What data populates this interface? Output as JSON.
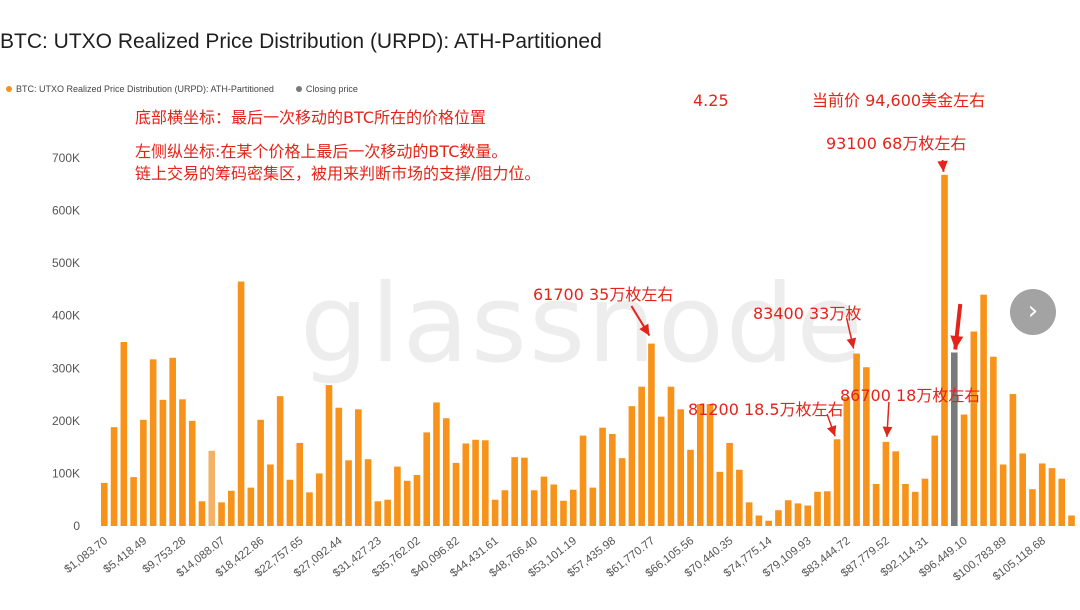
{
  "chart_data": {
    "type": "bar",
    "title": "BTC: UTXO Realized Price Distribution (URPD): ATH-Partitioned",
    "legend": [
      {
        "name": "BTC: UTXO Realized Price Distribution (URPD): ATH-Partitioned",
        "color": "#f7931a"
      },
      {
        "name": "Closing price",
        "color": "#7a7a7a"
      }
    ],
    "legend_position": "top-left",
    "grid": false,
    "ylim": [
      0,
      700000
    ],
    "yticks": [
      {
        "value": 0,
        "label": "0"
      },
      {
        "value": 100000,
        "label": "100K"
      },
      {
        "value": 200000,
        "label": "200K"
      },
      {
        "value": 300000,
        "label": "300K"
      },
      {
        "value": 400000,
        "label": "400K"
      },
      {
        "value": 500000,
        "label": "500K"
      },
      {
        "value": 600000,
        "label": "600K"
      },
      {
        "value": 700000,
        "label": "700K"
      }
    ],
    "xtick_labels": [
      "$1,083.70",
      "$5,418.49",
      "$9,753.28",
      "$14,088.07",
      "$18,422.86",
      "$22,757.65",
      "$27,092.44",
      "$31,427.23",
      "$35,762.02",
      "$40,096.82",
      "$44,431.61",
      "$48,766.40",
      "$53,101.19",
      "$57,435.98",
      "$61,770.77",
      "$66,105.56",
      "$70,440.35",
      "$74,775.14",
      "$79,109.93",
      "$83,444.72",
      "$87,779.52",
      "$92,114.31",
      "$96,449.10",
      "$100,783.89",
      "$105,118.68"
    ],
    "x_start": 1083.7,
    "bin_width": 1083.7,
    "values": [
      82000,
      188000,
      350000,
      93000,
      202000,
      317000,
      240000,
      320000,
      241000,
      200000,
      47000,
      143000,
      45000,
      67000,
      465000,
      73000,
      202000,
      117000,
      247000,
      88000,
      158000,
      64000,
      100000,
      268000,
      225000,
      125000,
      222000,
      127000,
      47000,
      50000,
      113000,
      86000,
      97000,
      178000,
      235000,
      205000,
      120000,
      157000,
      164000,
      163000,
      50000,
      68000,
      131000,
      130000,
      68000,
      94000,
      79000,
      48000,
      69000,
      172000,
      73000,
      187000,
      175000,
      129000,
      228000,
      265000,
      347000,
      208000,
      265000,
      222000,
      145000,
      232000,
      232000,
      103000,
      158000,
      107000,
      45000,
      20000,
      10000,
      30000,
      49000,
      43000,
      39000,
      65000,
      66000,
      165000,
      245000,
      328000,
      302000,
      80000,
      160000,
      142000,
      80000,
      65000,
      90000,
      172000,
      668000,
      330000,
      212000,
      370000,
      440000,
      322000,
      117000,
      251000,
      138000,
      70000,
      119000,
      110000,
      90000,
      20000
    ],
    "highlight_indices": [
      11
    ],
    "closing_price_index": 87,
    "colors": {
      "bar": "#f7931a",
      "highlight": "#f4b266",
      "closing": "#7a7a7a",
      "annotation": "#e3241b",
      "axis_text": "#555555"
    }
  },
  "annotations": {
    "xaxis_note": "底部横坐标：最后一次移动的BTC所在的价格位置",
    "yaxis_note_line1": "左侧纵坐标:在某个价格上最后一次移动的BTC数量。",
    "yaxis_note_line2": "链上交易的筹码密集区，被用来判断市场的支撑/阻力位。",
    "date": "4.25",
    "current_price": "当前价 94,600美金左右",
    "peak_93100": "93100 68万枚左右",
    "peak_61700": "61700 35万枚左右",
    "peak_83400": "83400 33万枚",
    "peak_81200": "81200 18.5万枚左右",
    "peak_86700": "86700 18万枚左右"
  },
  "watermark": "glassnode",
  "next_button_glyph": "›"
}
